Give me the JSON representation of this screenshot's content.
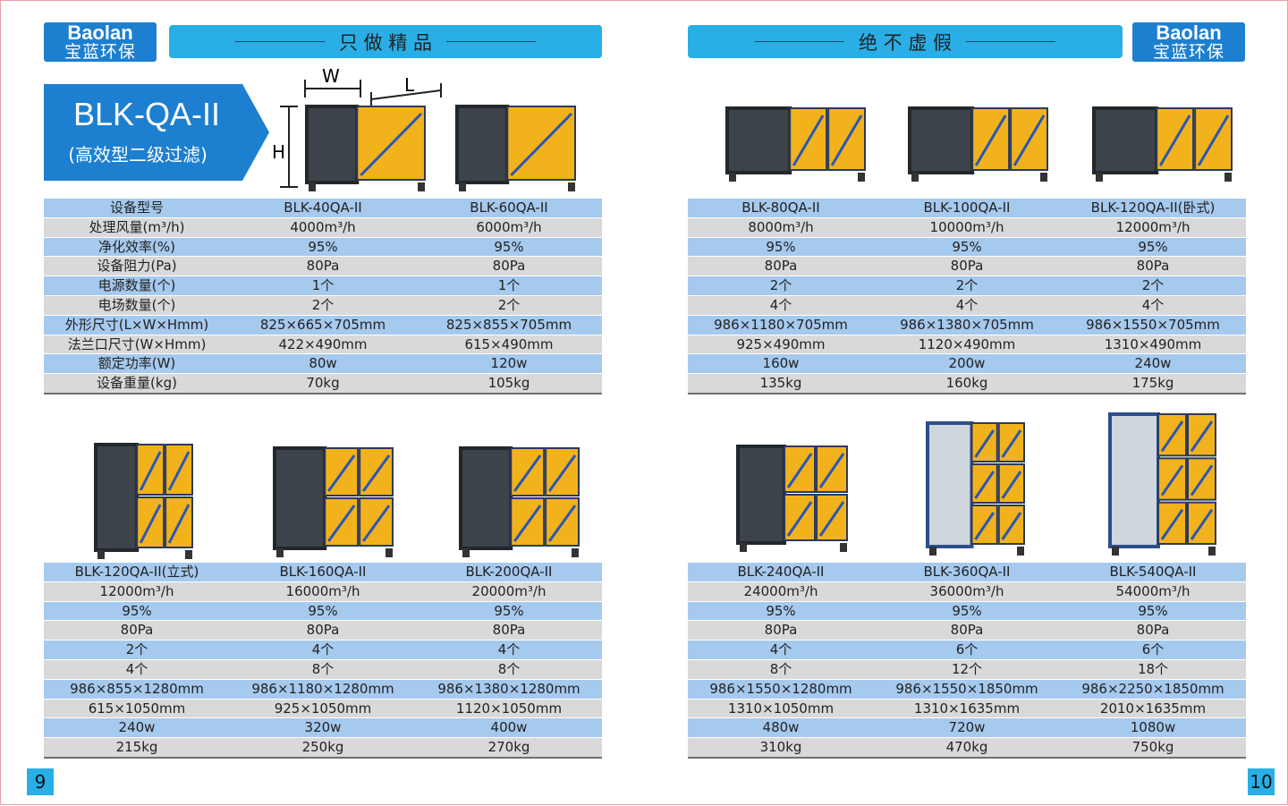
{
  "left_page": {
    "logo": {
      "brand": "Baolan",
      "name": "宝蓝环保"
    },
    "banner": "只 做 精 品",
    "model_title": "BLK-QA-II",
    "model_subtitle": "(高效型二级过滤)",
    "dimension_labels": {
      "w": "W",
      "l": "L",
      "h": "H"
    },
    "table1": {
      "rows": [
        [
          "设备型号",
          "BLK-40QA-II",
          "BLK-60QA-II"
        ],
        [
          "处理风量(m³/h)",
          "4000m³/h",
          "6000m³/h"
        ],
        [
          "净化效率(%)",
          "95%",
          "95%"
        ],
        [
          "设备阻力(Pa)",
          "80Pa",
          "80Pa"
        ],
        [
          "电源数量(个)",
          "1个",
          "1个"
        ],
        [
          "电场数量(个)",
          "2个",
          "2个"
        ],
        [
          "外形尺寸(L×W×Hmm)",
          "825×665×705mm",
          "825×855×705mm"
        ],
        [
          "法兰口尺寸(W×Hmm)",
          "422×490mm",
          "615×490mm"
        ],
        [
          "额定功率(W)",
          "80w",
          "120w"
        ],
        [
          "设备重量(kg)",
          "70kg",
          "105kg"
        ]
      ]
    },
    "table2": {
      "rows": [
        [
          "BLK-120QA-II(立式)",
          "BLK-160QA-II",
          "BLK-200QA-II"
        ],
        [
          "12000m³/h",
          "16000m³/h",
          "20000m³/h"
        ],
        [
          "95%",
          "95%",
          "95%"
        ],
        [
          "80Pa",
          "80Pa",
          "80Pa"
        ],
        [
          "2个",
          "4个",
          "4个"
        ],
        [
          "4个",
          "8个",
          "8个"
        ],
        [
          "986×855×1280mm",
          "986×1180×1280mm",
          "986×1380×1280mm"
        ],
        [
          "615×1050mm",
          "925×1050mm",
          "1120×1050mm"
        ],
        [
          "240w",
          "320w",
          "400w"
        ],
        [
          "215kg",
          "250kg",
          "270kg"
        ]
      ]
    },
    "page_number": "9"
  },
  "right_page": {
    "logo": {
      "brand": "Baolan",
      "name": "宝蓝环保"
    },
    "banner": "绝 不 虚 假",
    "table1": {
      "rows": [
        [
          "BLK-80QA-II",
          "BLK-100QA-II",
          "BLK-120QA-II(卧式)"
        ],
        [
          "8000m³/h",
          "10000m³/h",
          "12000m³/h"
        ],
        [
          "95%",
          "95%",
          "95%"
        ],
        [
          "80Pa",
          "80Pa",
          "80Pa"
        ],
        [
          "2个",
          "2个",
          "2个"
        ],
        [
          "4个",
          "4个",
          "4个"
        ],
        [
          "986×1180×705mm",
          "986×1380×705mm",
          "986×1550×705mm"
        ],
        [
          "925×490mm",
          "1120×490mm",
          "1310×490mm"
        ],
        [
          "160w",
          "200w",
          "240w"
        ],
        [
          "135kg",
          "160kg",
          "175kg"
        ]
      ]
    },
    "table2": {
      "rows": [
        [
          "BLK-240QA-II",
          "BLK-360QA-II",
          "BLK-540QA-II"
        ],
        [
          "24000m³/h",
          "36000m³/h",
          "54000m³/h"
        ],
        [
          "95%",
          "95%",
          "95%"
        ],
        [
          "80Pa",
          "80Pa",
          "80Pa"
        ],
        [
          "4个",
          "6个",
          "6个"
        ],
        [
          "8个",
          "12个",
          "18个"
        ],
        [
          "986×1550×1280mm",
          "986×1550×1850mm",
          "986×2250×1850mm"
        ],
        [
          "1310×1050mm",
          "1310×1635mm",
          "2010×1635mm"
        ],
        [
          "480w",
          "720w",
          "1080w"
        ],
        [
          "310kg",
          "470kg",
          "750kg"
        ]
      ]
    },
    "page_number": "10"
  }
}
